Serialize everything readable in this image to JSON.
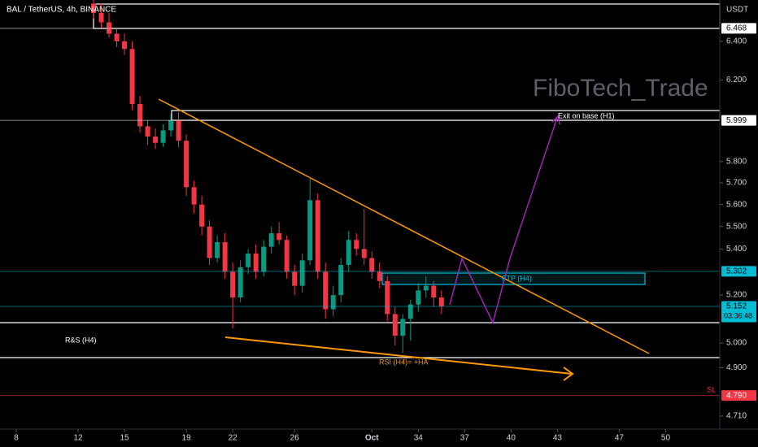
{
  "chart_data": {
    "type": "candlestick",
    "title": "BAL / TetherUS, 4h, BINANCE",
    "watermark": "FiboTech_Trade",
    "currency": "USDT",
    "countdown": "03:36:48",
    "log_scale": true,
    "up_color": "#089981",
    "down_color": "#f23645",
    "x": [
      13,
      13.5,
      14,
      14.5,
      15,
      15.5,
      16,
      16.5,
      17,
      17.5,
      18,
      18.5,
      19,
      19.5,
      20,
      20.5,
      21,
      21.5,
      22,
      22.5,
      23,
      23.5,
      24,
      24.5,
      25,
      25.5,
      26,
      26.5,
      27,
      27.5,
      28,
      28.5,
      29,
      29.5,
      30,
      30.5,
      31,
      31.5,
      32,
      32.5,
      33,
      33.5,
      34,
      34.5,
      35,
      35.5
    ],
    "open": [
      6.6,
      6.55,
      6.5,
      6.44,
      6.4,
      6.36,
      6.08,
      5.97,
      5.92,
      5.89,
      5.95,
      6.0,
      5.9,
      5.68,
      5.6,
      5.5,
      5.36,
      5.43,
      5.3,
      5.19,
      5.32,
      5.38,
      5.3,
      5.41,
      5.47,
      5.44,
      5.3,
      5.24,
      5.35,
      5.62,
      5.3,
      5.14,
      5.2,
      5.33,
      5.44,
      5.4,
      5.36,
      5.3,
      5.26,
      5.12,
      5.03,
      5.1,
      5.16,
      5.22,
      5.24,
      5.19
    ],
    "high": [
      6.64,
      6.6,
      6.55,
      6.47,
      6.44,
      6.4,
      6.12,
      6.0,
      5.96,
      5.98,
      6.03,
      6.04,
      5.93,
      5.71,
      5.64,
      5.53,
      5.46,
      5.47,
      5.34,
      5.35,
      5.4,
      5.42,
      5.44,
      5.5,
      5.52,
      5.46,
      5.33,
      5.38,
      5.72,
      5.65,
      5.34,
      5.24,
      5.36,
      5.48,
      5.47,
      5.58,
      5.39,
      5.34,
      5.28,
      5.15,
      5.12,
      5.18,
      5.25,
      5.28,
      5.26,
      5.22
    ],
    "low": [
      6.52,
      6.47,
      6.42,
      6.37,
      6.33,
      6.05,
      5.94,
      5.88,
      5.86,
      5.87,
      5.92,
      5.87,
      5.64,
      5.56,
      5.46,
      5.33,
      5.34,
      5.27,
      5.06,
      5.17,
      5.29,
      5.27,
      5.28,
      5.38,
      5.42,
      5.27,
      5.2,
      5.21,
      5.33,
      5.27,
      5.1,
      5.11,
      5.17,
      5.3,
      5.37,
      5.33,
      5.27,
      5.23,
      5.09,
      4.99,
      4.96,
      5.01,
      5.13,
      5.19,
      5.15,
      5.12
    ],
    "close": [
      6.55,
      6.5,
      6.44,
      6.4,
      6.36,
      6.08,
      5.97,
      5.92,
      5.89,
      5.95,
      6.0,
      5.9,
      5.68,
      5.6,
      5.5,
      5.36,
      5.43,
      5.3,
      5.19,
      5.32,
      5.38,
      5.3,
      5.41,
      5.47,
      5.44,
      5.3,
      5.24,
      5.35,
      5.62,
      5.3,
      5.14,
      5.2,
      5.33,
      5.44,
      5.4,
      5.36,
      5.3,
      5.26,
      5.12,
      5.03,
      5.1,
      5.16,
      5.22,
      5.24,
      5.19,
      5.152
    ],
    "xlim": [
      6.95,
      53.5
    ],
    "ylim": [
      4.66,
      6.62
    ],
    "xticks": [
      8,
      12,
      15,
      19,
      22,
      26,
      {
        "value": 31,
        "label": "Oct"
      },
      34,
      37,
      40,
      43,
      47,
      50
    ],
    "yticks": [
      {
        "value": 6.4,
        "label": "6.400"
      },
      {
        "value": 6.2,
        "label": "6.200"
      },
      {
        "value": 5.8,
        "label": "5.800"
      },
      {
        "value": 5.7,
        "label": "5.700"
      },
      {
        "value": 5.6,
        "label": "5.600"
      },
      {
        "value": 5.5,
        "label": "5.500"
      },
      {
        "value": 5.4,
        "label": "5.400"
      },
      {
        "value": 5.2,
        "label": "5.200"
      },
      {
        "value": 5.0,
        "label": "5.000"
      },
      {
        "value": 4.9,
        "label": "4.900"
      },
      {
        "value": 4.71,
        "label": "4.710"
      }
    ],
    "levels": [
      {
        "value": 6.468,
        "color": "#ffffff",
        "text_color": "#000000"
      },
      {
        "value": 5.999,
        "color": "#ffffff",
        "text_color": "#000000"
      },
      {
        "value": 5.302,
        "color": "#00bcd4",
        "text_color": "#000000"
      },
      {
        "value": 5.152,
        "color": "#00bcd4",
        "text_color": "#000000"
      },
      {
        "value": 4.79,
        "label": "4.790",
        "color": "#f23645",
        "text_color": "#ffffff"
      }
    ],
    "annotations": {
      "exit": "Exit on base (H1)",
      "ftp": "FTP (H4)",
      "rs": "R&S (H4)",
      "rsi": "RSI (H4)= +HA",
      "sl": "SL"
    }
  }
}
